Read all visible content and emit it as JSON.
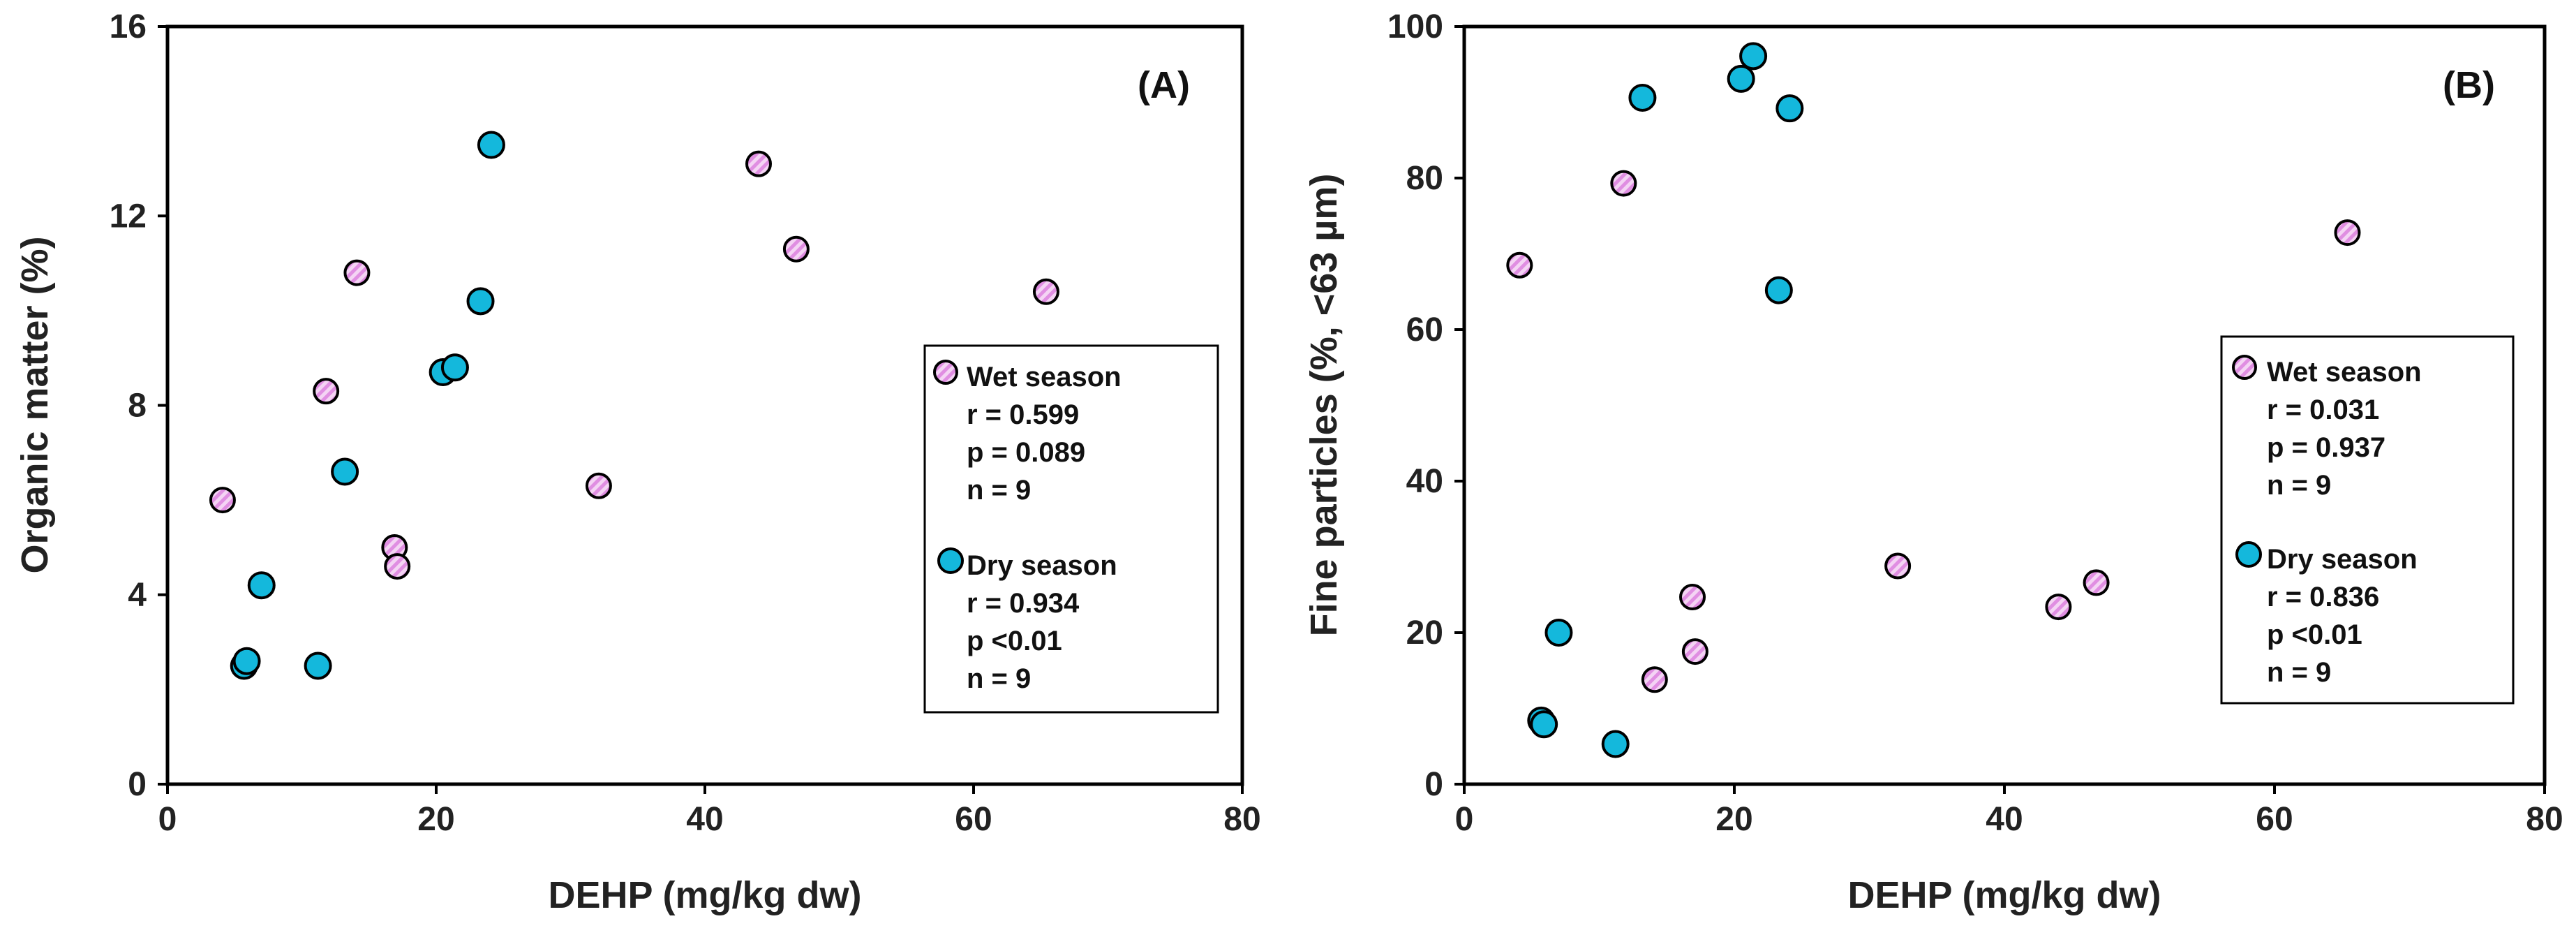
{
  "chart_data": [
    {
      "type": "scatter",
      "panel_label": "(A)",
      "xlabel": "DEHP (mg/kg dw)",
      "ylabel": "Organic matter (%)",
      "xlim": [
        0,
        80
      ],
      "ylim": [
        0,
        16
      ],
      "xticks": [
        0,
        20,
        40,
        60,
        80
      ],
      "yticks": [
        0,
        4,
        8,
        12,
        16
      ],
      "legend_position": "right",
      "series": [
        {
          "name": "Wet season",
          "color": "#e7a8e8",
          "stats": [
            "r = 0.599",
            "p = 0.089",
            "n = 9"
          ],
          "points": [
            [
              4.1,
              6.0
            ],
            [
              11.8,
              8.3
            ],
            [
              14.1,
              10.8
            ],
            [
              16.9,
              5.0
            ],
            [
              17.1,
              4.6
            ],
            [
              32.1,
              6.3
            ],
            [
              44.0,
              13.1
            ],
            [
              46.8,
              11.3
            ],
            [
              65.4,
              10.4
            ]
          ]
        },
        {
          "name": "Dry season",
          "color": "#14b8dc",
          "stats": [
            "r = 0.934",
            "p <0.01",
            "n = 9"
          ],
          "points": [
            [
              5.7,
              2.5
            ],
            [
              5.9,
              2.6
            ],
            [
              7.0,
              4.2
            ],
            [
              11.2,
              2.5
            ],
            [
              13.2,
              6.6
            ],
            [
              20.5,
              8.7
            ],
            [
              21.4,
              8.8
            ],
            [
              23.3,
              10.2
            ],
            [
              24.1,
              13.5
            ]
          ]
        }
      ]
    },
    {
      "type": "scatter",
      "panel_label": "(B)",
      "xlabel": "DEHP (mg/kg dw)",
      "ylabel": "Fine particles (%, <63 µm)",
      "xlim": [
        0,
        80
      ],
      "ylim": [
        0,
        100
      ],
      "xticks": [
        0,
        20,
        40,
        60,
        80
      ],
      "yticks": [
        0,
        20,
        40,
        60,
        80,
        100
      ],
      "legend_position": "right",
      "series": [
        {
          "name": "Wet season",
          "color": "#e7a8e8",
          "stats": [
            "r = 0.031",
            "p = 0.937",
            "n = 9"
          ],
          "points": [
            [
              4.1,
              68.5
            ],
            [
              11.8,
              79.3
            ],
            [
              14.1,
              13.8
            ],
            [
              16.9,
              24.7
            ],
            [
              17.1,
              17.5
            ],
            [
              32.1,
              28.8
            ],
            [
              44.0,
              23.4
            ],
            [
              46.8,
              26.6
            ],
            [
              65.4,
              72.8
            ]
          ]
        },
        {
          "name": "Dry season",
          "color": "#14b8dc",
          "stats": [
            "r = 0.836",
            "p <0.01",
            "n = 9"
          ],
          "points": [
            [
              5.7,
              8.4
            ],
            [
              5.9,
              7.9
            ],
            [
              7.0,
              20.0
            ],
            [
              11.2,
              5.3
            ],
            [
              13.2,
              90.6
            ],
            [
              20.5,
              93.1
            ],
            [
              21.4,
              96.1
            ],
            [
              23.3,
              65.2
            ],
            [
              24.1,
              89.2
            ]
          ]
        }
      ]
    }
  ]
}
